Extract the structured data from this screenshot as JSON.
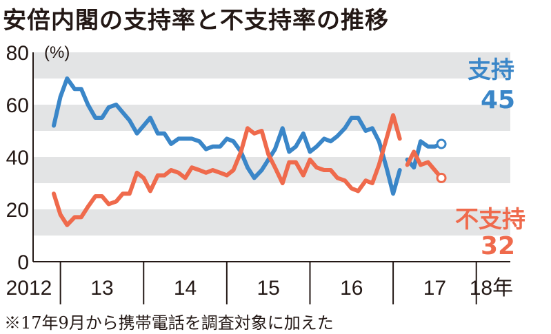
{
  "title": "安倍内閣の支持率と不支持率の推移",
  "footnote": "※17年9月から携帯電話を調査対象に加えた",
  "chart_data": {
    "type": "line",
    "title": "安倍内閣の支持率と不支持率の推移",
    "xlabel": "",
    "ylabel": "",
    "y_unit": "(%)",
    "ylim": [
      0,
      80
    ],
    "y_ticks": [
      0,
      20,
      40,
      60,
      80
    ],
    "shaded_bands": [
      [
        10,
        20
      ],
      [
        30,
        40
      ],
      [
        50,
        60
      ],
      [
        70,
        80
      ]
    ],
    "year_labels": [
      {
        "label": "2012",
        "x": 2012.5
      },
      {
        "label": "13",
        "x": 2013.5
      },
      {
        "label": "14",
        "x": 2014.5
      },
      {
        "label": "15",
        "x": 2015.5
      },
      {
        "label": "16",
        "x": 2016.5
      },
      {
        "label": "17",
        "x": 2017.5
      },
      {
        "label": "18年",
        "x": 2018.18
      }
    ],
    "year_dividers": [
      2013,
      2014,
      2015,
      2016,
      2017,
      2018
    ],
    "xlim": [
      2012.9,
      2018.3
    ],
    "note": "※17年9月から携帯電話を調査対象に加えた",
    "series": [
      {
        "name": "支持",
        "color": "#3a86c8",
        "end_label": "45",
        "segments": [
          [
            [
              2012.92,
              52
            ],
            [
              2013.0,
              63
            ],
            [
              2013.08,
              70
            ],
            [
              2013.17,
              66
            ],
            [
              2013.25,
              66
            ],
            [
              2013.33,
              60
            ],
            [
              2013.42,
              55
            ],
            [
              2013.5,
              55
            ],
            [
              2013.58,
              59
            ],
            [
              2013.67,
              60
            ],
            [
              2013.75,
              57
            ],
            [
              2013.83,
              54
            ],
            [
              2013.92,
              49
            ],
            [
              2014.0,
              52
            ],
            [
              2014.08,
              55
            ],
            [
              2014.17,
              49
            ],
            [
              2014.25,
              49
            ],
            [
              2014.33,
              45
            ],
            [
              2014.42,
              47
            ],
            [
              2014.5,
              47
            ],
            [
              2014.58,
              47
            ],
            [
              2014.67,
              46
            ],
            [
              2014.75,
              43
            ],
            [
              2014.83,
              44
            ],
            [
              2014.92,
              44
            ],
            [
              2015.0,
              47
            ],
            [
              2015.08,
              46
            ],
            [
              2015.17,
              42
            ],
            [
              2015.25,
              36
            ],
            [
              2015.33,
              32
            ],
            [
              2015.42,
              35
            ],
            [
              2015.5,
              39
            ],
            [
              2015.58,
              43
            ],
            [
              2015.67,
              51
            ],
            [
              2015.75,
              42
            ],
            [
              2015.83,
              44
            ],
            [
              2015.92,
              49
            ],
            [
              2016.0,
              42
            ],
            [
              2016.08,
              44
            ],
            [
              2016.17,
              47
            ],
            [
              2016.25,
              46
            ],
            [
              2016.33,
              48
            ],
            [
              2016.42,
              51
            ],
            [
              2016.5,
              55
            ],
            [
              2016.58,
              55
            ],
            [
              2016.67,
              50
            ],
            [
              2016.75,
              51
            ],
            [
              2016.83,
              46
            ],
            [
              2016.92,
              36
            ],
            [
              2017.0,
              26
            ],
            [
              2017.08,
              35
            ]
          ],
          [
            [
              2017.17,
              39
            ],
            [
              2017.25,
              36
            ],
            [
              2017.33,
              46
            ],
            [
              2017.42,
              44
            ],
            [
              2017.5,
              44
            ],
            [
              2017.58,
              45
            ]
          ]
        ]
      },
      {
        "name": "不支持",
        "color": "#ef6a4c",
        "end_label": "32",
        "segments": [
          [
            [
              2012.92,
              26
            ],
            [
              2013.0,
              18
            ],
            [
              2013.08,
              14
            ],
            [
              2013.17,
              17
            ],
            [
              2013.25,
              17
            ],
            [
              2013.33,
              21
            ],
            [
              2013.42,
              25
            ],
            [
              2013.5,
              25
            ],
            [
              2013.58,
              22
            ],
            [
              2013.67,
              23
            ],
            [
              2013.75,
              26
            ],
            [
              2013.83,
              26
            ],
            [
              2013.92,
              34
            ],
            [
              2014.0,
              32
            ],
            [
              2014.08,
              27
            ],
            [
              2014.17,
              33
            ],
            [
              2014.25,
              33
            ],
            [
              2014.33,
              35
            ],
            [
              2014.42,
              34
            ],
            [
              2014.5,
              32
            ],
            [
              2014.58,
              36
            ],
            [
              2014.67,
              35
            ],
            [
              2014.75,
              34
            ],
            [
              2014.83,
              35
            ],
            [
              2014.92,
              34
            ],
            [
              2015.0,
              33
            ],
            [
              2015.08,
              35
            ],
            [
              2015.17,
              42
            ],
            [
              2015.25,
              51
            ],
            [
              2015.33,
              49
            ],
            [
              2015.42,
              50
            ],
            [
              2015.5,
              41
            ],
            [
              2015.58,
              36
            ],
            [
              2015.67,
              30
            ],
            [
              2015.75,
              38
            ],
            [
              2015.83,
              38
            ],
            [
              2015.92,
              33
            ],
            [
              2016.0,
              39
            ],
            [
              2016.08,
              36
            ],
            [
              2016.17,
              35
            ],
            [
              2016.25,
              35
            ],
            [
              2016.33,
              32
            ],
            [
              2016.42,
              31
            ],
            [
              2016.5,
              28
            ],
            [
              2016.58,
              27
            ],
            [
              2016.67,
              31
            ],
            [
              2016.75,
              30
            ],
            [
              2016.83,
              37
            ],
            [
              2016.92,
              47
            ],
            [
              2017.0,
              56
            ],
            [
              2017.08,
              47
            ]
          ],
          [
            [
              2017.17,
              37
            ],
            [
              2017.25,
              42
            ],
            [
              2017.33,
              37
            ],
            [
              2017.42,
              38
            ],
            [
              2017.5,
              35
            ],
            [
              2017.58,
              32
            ]
          ]
        ]
      }
    ]
  }
}
